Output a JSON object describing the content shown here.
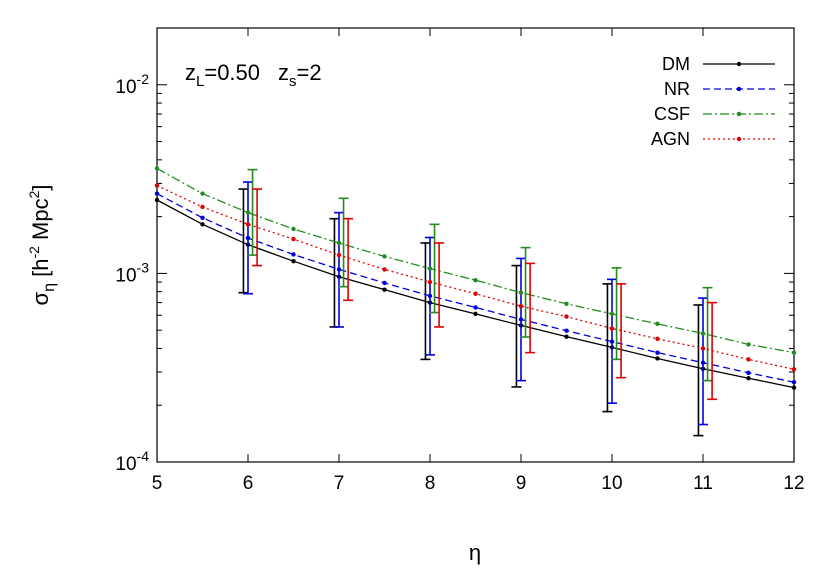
{
  "chart_data": {
    "type": "line",
    "title": "",
    "annotation": {
      "zL_label": "z",
      "zL_sub": "L",
      "zL_value": "=0.50",
      "zs_label": "z",
      "zs_sub": "s",
      "zs_value": "=2"
    },
    "xlabel": "η",
    "ylabel": {
      "sigma": "σ",
      "sigma_sub": "η",
      "open": " [h",
      "exp1": "-2",
      "mid": " Mpc",
      "exp2": "2",
      "close": "]"
    },
    "xlim": [
      5,
      12
    ],
    "ylim": [
      0.0001,
      0.02
    ],
    "yscale": "log",
    "x_ticks": [
      "5",
      "6",
      "7",
      "8",
      "9",
      "10",
      "11",
      "12"
    ],
    "y_ticks": [
      {
        "value": 0.0001,
        "base": "10",
        "exp": "-4"
      },
      {
        "value": 0.001,
        "base": "10",
        "exp": "-3"
      },
      {
        "value": 0.01,
        "base": "10",
        "exp": "-2"
      }
    ],
    "legend_position": "top-right",
    "x": [
      5,
      5.5,
      6,
      6.5,
      7,
      7.5,
      8,
      8.5,
      9,
      9.5,
      10,
      10.5,
      11,
      11.5,
      12
    ],
    "series": [
      {
        "name": "DM",
        "color": "#000000",
        "dash": "",
        "values": [
          0.00245,
          0.00182,
          0.00142,
          0.00116,
          0.00096,
          0.00082,
          0.0007,
          0.00061,
          0.00053,
          0.000462,
          0.000405,
          0.000354,
          0.000312,
          0.000278,
          0.000248
        ],
        "errorbars": [
          {
            "x": 5.95,
            "y": 0.00142,
            "low": 0.00079,
            "high": 0.0028
          },
          {
            "x": 6.95,
            "y": 0.00096,
            "low": 0.00052,
            "high": 0.00195
          },
          {
            "x": 7.95,
            "y": 0.0007,
            "low": 0.00035,
            "high": 0.00145
          },
          {
            "x": 8.95,
            "y": 0.00053,
            "low": 0.00025,
            "high": 0.0011
          },
          {
            "x": 9.95,
            "y": 0.000405,
            "low": 0.000185,
            "high": 0.00088
          },
          {
            "x": 10.95,
            "y": 0.000312,
            "low": 0.000138,
            "high": 0.00068
          }
        ]
      },
      {
        "name": "NR",
        "color": "#0000e0",
        "dash": "7,4",
        "values": [
          0.00265,
          0.00197,
          0.00154,
          0.00126,
          0.00105,
          0.00089,
          0.00076,
          0.00066,
          0.00057,
          0.000497,
          0.000435,
          0.00038,
          0.000336,
          0.000297,
          0.000265
        ],
        "errorbars": [
          {
            "x": 6.0,
            "y": 0.00154,
            "low": 0.00078,
            "high": 0.00305
          },
          {
            "x": 7.0,
            "y": 0.00105,
            "low": 0.00052,
            "high": 0.0021
          },
          {
            "x": 8.0,
            "y": 0.00076,
            "low": 0.00037,
            "high": 0.00155
          },
          {
            "x": 9.0,
            "y": 0.00057,
            "low": 0.00027,
            "high": 0.0012
          },
          {
            "x": 10.0,
            "y": 0.000435,
            "low": 0.000205,
            "high": 0.00093
          },
          {
            "x": 11.0,
            "y": 0.000336,
            "low": 0.000158,
            "high": 0.00074
          }
        ]
      },
      {
        "name": "CSF",
        "color": "#228b22",
        "dash": "9,3,2,3",
        "values": [
          0.0036,
          0.00265,
          0.0021,
          0.00172,
          0.00145,
          0.00123,
          0.00106,
          0.00092,
          0.00079,
          0.00069,
          0.00061,
          0.00054,
          0.00048,
          0.00042,
          0.00038
        ],
        "errorbars": [
          {
            "x": 6.05,
            "y": 0.0021,
            "low": 0.00125,
            "high": 0.00355
          },
          {
            "x": 7.05,
            "y": 0.00145,
            "low": 0.00085,
            "high": 0.0025
          },
          {
            "x": 8.05,
            "y": 0.00106,
            "low": 0.00062,
            "high": 0.00182
          },
          {
            "x": 9.05,
            "y": 0.00079,
            "low": 0.00046,
            "high": 0.00137
          },
          {
            "x": 10.05,
            "y": 0.00061,
            "low": 0.00035,
            "high": 0.00107
          },
          {
            "x": 11.05,
            "y": 0.00048,
            "low": 0.00027,
            "high": 0.00084
          }
        ]
      },
      {
        "name": "AGN",
        "color": "#e00000",
        "dash": "2,3",
        "values": [
          0.00292,
          0.00225,
          0.00182,
          0.00152,
          0.00125,
          0.00105,
          0.0009,
          0.00078,
          0.00067,
          0.00059,
          0.00051,
          0.00045,
          0.0004,
          0.00035,
          0.00031
        ],
        "errorbars": [
          {
            "x": 6.1,
            "y": 0.00182,
            "low": 0.0011,
            "high": 0.0028
          },
          {
            "x": 7.1,
            "y": 0.00125,
            "low": 0.00072,
            "high": 0.00195
          },
          {
            "x": 8.1,
            "y": 0.0009,
            "low": 0.00052,
            "high": 0.00145
          },
          {
            "x": 9.1,
            "y": 0.00067,
            "low": 0.00038,
            "high": 0.00113
          },
          {
            "x": 10.1,
            "y": 0.00051,
            "low": 0.00028,
            "high": 0.00088
          },
          {
            "x": 11.1,
            "y": 0.0004,
            "low": 0.000215,
            "high": 0.0007
          }
        ]
      }
    ]
  }
}
